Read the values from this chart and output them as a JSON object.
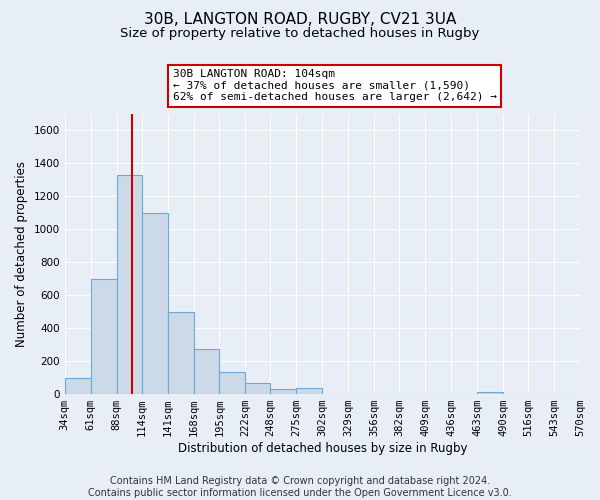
{
  "title": "30B, LANGTON ROAD, RUGBY, CV21 3UA",
  "subtitle": "Size of property relative to detached houses in Rugby",
  "xlabel": "Distribution of detached houses by size in Rugby",
  "ylabel": "Number of detached properties",
  "bar_color": "#ccd9e8",
  "bar_edge_color": "#6aaad4",
  "vline_x": 104,
  "vline_color": "#cc0000",
  "annotation_text": "30B LANGTON ROAD: 104sqm\n← 37% of detached houses are smaller (1,590)\n62% of semi-detached houses are larger (2,642) →",
  "annotation_box_color": "#cc0000",
  "bin_edges": [
    34,
    61,
    88,
    114,
    141,
    168,
    195,
    222,
    248,
    275,
    302,
    329,
    356,
    382,
    409,
    436,
    463,
    490,
    516,
    543,
    570
  ],
  "bin_counts": [
    95,
    700,
    1330,
    1100,
    495,
    275,
    135,
    70,
    30,
    35,
    0,
    0,
    0,
    0,
    0,
    0,
    15,
    0,
    0,
    0
  ],
  "ylim": [
    0,
    1700
  ],
  "yticks": [
    0,
    200,
    400,
    600,
    800,
    1000,
    1200,
    1400,
    1600
  ],
  "footer_text": "Contains HM Land Registry data © Crown copyright and database right 2024.\nContains public sector information licensed under the Open Government Licence v3.0.",
  "background_color": "#e8eef6",
  "plot_bg_color": "#e8eef6",
  "grid_color": "#ffffff",
  "title_fontsize": 11,
  "subtitle_fontsize": 9.5,
  "axis_label_fontsize": 8.5,
  "tick_fontsize": 7.5,
  "footer_fontsize": 7,
  "annotation_fontsize": 8
}
